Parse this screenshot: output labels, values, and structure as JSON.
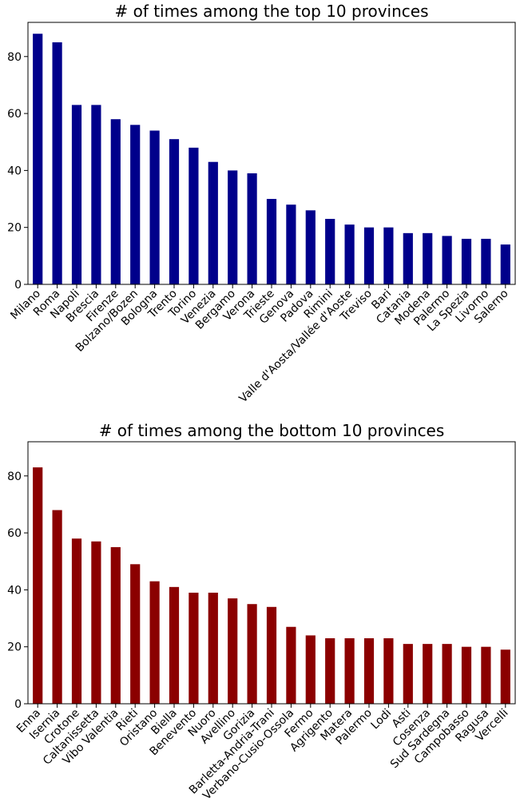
{
  "chart_data": [
    {
      "type": "bar",
      "title": "# of times among the top 10 provinces",
      "xlabel": "",
      "ylabel": "",
      "ylim": [
        0,
        92
      ],
      "yticks": [
        0,
        20,
        40,
        60,
        80
      ],
      "grid": false,
      "color": "#00008b",
      "categories": [
        "Milano",
        "Roma",
        "Napoli",
        "Brescia",
        "Firenze",
        "Bolzano/Bozen",
        "Bologna",
        "Trento",
        "Torino",
        "Venezia",
        "Bergamo",
        "Verona",
        "Trieste",
        "Genova",
        "Padova",
        "Rimini",
        "Valle d'Aosta/Vallée d'Aoste",
        "Treviso",
        "Bari",
        "Catania",
        "Modena",
        "Palermo",
        "La Spezia",
        "Livorno",
        "Salerno"
      ],
      "values": [
        88,
        85,
        63,
        63,
        58,
        56,
        54,
        51,
        48,
        43,
        40,
        39,
        30,
        28,
        26,
        23,
        21,
        20,
        20,
        18,
        18,
        17,
        16,
        16,
        14
      ]
    },
    {
      "type": "bar",
      "title": "# of times among the bottom 10 provinces",
      "xlabel": "",
      "ylabel": "",
      "ylim": [
        0,
        92
      ],
      "yticks": [
        0,
        20,
        40,
        60,
        80
      ],
      "grid": false,
      "color": "#8b0000",
      "categories": [
        "Enna",
        "Isernia",
        "Crotone",
        "Caltanissetta",
        "Vibo Valentia",
        "Rieti",
        "Oristano",
        "Biella",
        "Benevento",
        "Nuoro",
        "Avellino",
        "Gorizia",
        "Barletta-Andria-Trani",
        "Verbano-Cusio-Ossola",
        "Fermo",
        "Agrigento",
        "Matera",
        "Palermo",
        "Lodi",
        "Asti",
        "Cosenza",
        "Sud Sardegna",
        "Campobasso",
        "Ragusa",
        "Vercelli"
      ],
      "values": [
        83,
        68,
        58,
        57,
        55,
        49,
        43,
        41,
        39,
        39,
        37,
        35,
        34,
        27,
        24,
        23,
        23,
        23,
        23,
        21,
        21,
        21,
        20,
        20,
        19
      ]
    }
  ]
}
